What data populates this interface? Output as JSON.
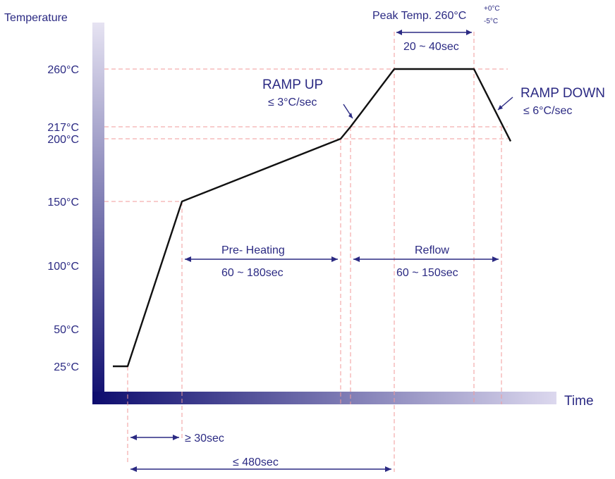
{
  "chart_data": {
    "type": "line",
    "title": "",
    "ylabel": "Temperature",
    "xlabel": "Time",
    "y_ticks": [
      {
        "value": 25,
        "label": "25°C"
      },
      {
        "value": 50,
        "label": "50°C"
      },
      {
        "value": 100,
        "label": "100°C"
      },
      {
        "value": 150,
        "label": "150°C"
      },
      {
        "value": 200,
        "label": "200°C"
      },
      {
        "value": 217,
        "label": "217°C"
      },
      {
        "value": 260,
        "label": "260°C"
      }
    ],
    "series": [
      {
        "points": [
          {
            "x": 0,
            "y": 25
          },
          {
            "x": 12,
            "y": 25
          },
          {
            "x": 60,
            "y": 150
          },
          {
            "x": 200,
            "y": 200
          },
          {
            "x": 212,
            "y": 217
          },
          {
            "x": 240,
            "y": 260
          },
          {
            "x": 310,
            "y": 260
          },
          {
            "x": 345,
            "y": 198
          }
        ]
      }
    ],
    "annotations": {
      "peak_temp": {
        "label": "Peak Temp. 260°C",
        "tol_plus": "+0°C",
        "tol_minus": "-5°C"
      },
      "peak_duration": "20 ~ 40sec",
      "ramp_up": {
        "title": "RAMP UP",
        "rate": "≤ 3°C/sec"
      },
      "ramp_down": {
        "title": "RAMP DOWN",
        "rate": "≤ 6°C/sec"
      },
      "preheating": {
        "title": "Pre- Heating",
        "duration": "60 ~ 180sec"
      },
      "reflow": {
        "title": "Reflow",
        "duration": "60 ~ 150sec"
      },
      "initial_ramp": "≥ 30sec",
      "total_time": "≤ 480sec"
    }
  }
}
